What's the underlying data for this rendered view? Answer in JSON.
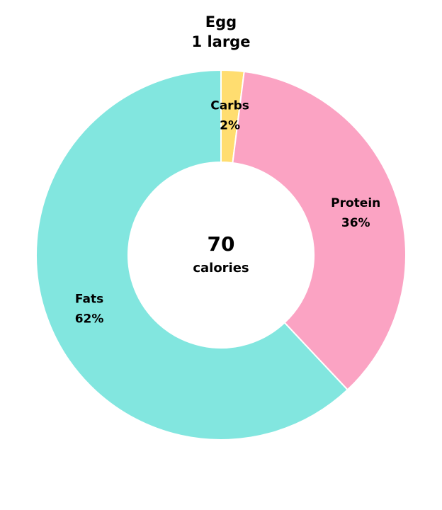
{
  "header": {
    "food": "Egg",
    "serving": "1 large"
  },
  "center": {
    "value": "70",
    "unit": "calories"
  },
  "chart_data": {
    "type": "pie",
    "donut": true,
    "categories": [
      "Carbs",
      "Protein",
      "Fats"
    ],
    "values": [
      2,
      36,
      62
    ],
    "value_labels": [
      "2%",
      "36%",
      "62%"
    ],
    "colors": [
      "#ffdd70",
      "#fba3c3",
      "#82e6df"
    ],
    "start": "top",
    "direction": "clockwise",
    "legend": "none"
  }
}
